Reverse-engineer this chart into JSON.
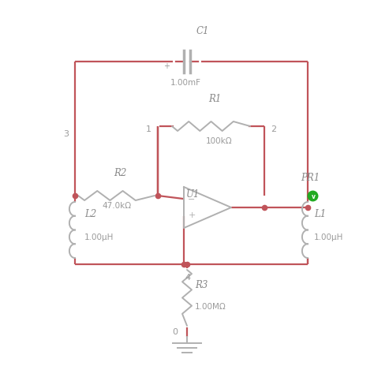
{
  "bg_color": "#ffffff",
  "wire_color": "#c0545a",
  "comp_color": "#b0b0b0",
  "text_color": "#9a9a9a",
  "label_italic_color": "#888888",
  "green_dot": "#22aa22",
  "fig_width": 4.74,
  "fig_height": 4.83,
  "C1_label": "C1",
  "C1_value": "1.00mF",
  "R1_label": "R1",
  "R1_value": "100kΩ",
  "R2_label": "R2",
  "R2_value": "47.0kΩ",
  "R3_label": "R3",
  "R3_value": "1.00MΩ",
  "L1_label": "L1",
  "L1_value": "1.00μH",
  "L2_label": "L2",
  "L2_value": "1.00μH",
  "U1_label": "U1",
  "PR1_label": "PR1",
  "node0": "0",
  "node1": "1",
  "node2": "2",
  "node3": "3",
  "node4": "4"
}
